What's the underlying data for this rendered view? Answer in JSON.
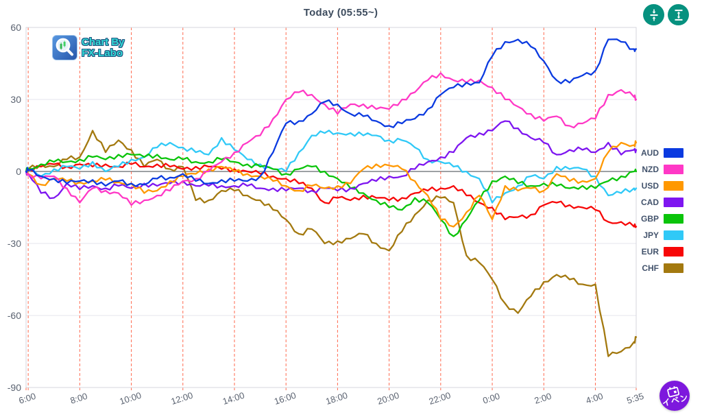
{
  "header": {
    "title": "Today  (05:55~)"
  },
  "toolbar": {
    "shrink_button": {
      "icon": "arrows-collapse-vertical-icon"
    },
    "expand_button": {
      "icon": "arrows-expand-vertical-icon"
    },
    "color": "#06917f"
  },
  "watermark": {
    "line1": "Chart By",
    "line2": "FX-Labo"
  },
  "event_button": {
    "label": "イベン",
    "color": "#7d18dd",
    "icon": "calendar-icon"
  },
  "chart_data": {
    "type": "line",
    "title": "Today (05:55~)",
    "x_unit": "minutes since 05:55",
    "xlim": [
      0,
      1420
    ],
    "ylim": [
      -90,
      60
    ],
    "yticks": [
      60,
      30,
      0,
      -30,
      -60,
      -90
    ],
    "xticks": [
      {
        "min": 5,
        "label": "6:00"
      },
      {
        "min": 125,
        "label": "8:00"
      },
      {
        "min": 245,
        "label": "10:00"
      },
      {
        "min": 365,
        "label": "12:00"
      },
      {
        "min": 485,
        "label": "14:00"
      },
      {
        "min": 605,
        "label": "16:00"
      },
      {
        "min": 725,
        "label": "18:00"
      },
      {
        "min": 845,
        "label": "20:00"
      },
      {
        "min": 965,
        "label": "22:00"
      },
      {
        "min": 1085,
        "label": "0:00"
      },
      {
        "min": 1205,
        "label": "2:00"
      },
      {
        "min": 1325,
        "label": "4:00"
      },
      {
        "min": 1420,
        "label": "5:35"
      }
    ],
    "vline_minutes": [
      0,
      5,
      125,
      245,
      365,
      485,
      605,
      725,
      845,
      965,
      1085,
      1205,
      1325,
      1420
    ],
    "grid": {
      "h_color": "#e6e6ec",
      "zero_color": "#8f9296",
      "v_color": "#ff5030",
      "v_dash": "4 3",
      "border_color": "#d4d4dc",
      "tick_text_color": "#5a6270"
    },
    "x": [
      0,
      5,
      35,
      65,
      95,
      125,
      155,
      185,
      215,
      245,
      275,
      305,
      335,
      365,
      395,
      425,
      455,
      485,
      515,
      545,
      575,
      605,
      635,
      665,
      695,
      725,
      755,
      785,
      815,
      845,
      875,
      905,
      935,
      965,
      995,
      1025,
      1055,
      1085,
      1115,
      1145,
      1175,
      1205,
      1235,
      1265,
      1295,
      1325,
      1355,
      1385,
      1415,
      1420
    ],
    "series": [
      {
        "name": "AUD",
        "color": "#0a3ae0",
        "values": [
          0,
          0.5,
          -2,
          -3,
          -5,
          -4,
          -3.5,
          -6,
          -4,
          -5,
          -5.5,
          -3,
          -2.5,
          -1,
          -4,
          -5,
          -3.5,
          -4,
          -4,
          -2,
          8,
          20,
          21,
          24,
          29,
          28,
          24,
          23,
          21,
          19,
          20,
          22,
          26,
          32,
          35,
          37,
          37,
          48,
          54,
          55,
          52,
          46,
          38,
          37,
          40,
          42,
          55,
          54,
          51,
          51
        ]
      },
      {
        "name": "NZD",
        "color": "#ff38c6",
        "values": [
          0,
          -1,
          -3,
          -2,
          -7,
          -13,
          -7,
          -8,
          -9,
          -14,
          -12,
          -10,
          -8,
          -4,
          -3,
          0,
          4,
          8,
          12,
          15,
          22,
          30,
          33,
          32,
          28,
          24,
          28,
          28,
          26,
          26,
          30,
          33,
          38,
          41,
          38,
          37,
          38,
          35,
          30,
          27,
          24,
          21,
          23,
          19,
          20,
          22,
          32,
          34,
          31,
          30
        ]
      },
      {
        "name": "USD",
        "color": "#ff9800",
        "values": [
          0,
          -1,
          -5.5,
          -3,
          -4,
          -4.5,
          -4,
          -3.5,
          -4.5,
          -5,
          -9,
          -8,
          -4,
          -2,
          -1,
          1,
          2,
          0,
          -1,
          -2,
          -4,
          -6,
          -8,
          -6,
          -7,
          -6,
          -5,
          1,
          3,
          2.5,
          1,
          -4,
          -10,
          -20,
          -23,
          -17,
          -10,
          -20,
          -6,
          -8,
          -7,
          -8,
          -1,
          -4,
          -4,
          -3,
          8,
          12,
          11,
          12
        ]
      },
      {
        "name": "CAD",
        "color": "#7e16f0",
        "values": [
          0,
          -1,
          -9,
          -11,
          -5,
          -7.5,
          -6,
          -7,
          -6,
          -7,
          -5,
          -6,
          -5,
          -4,
          -6,
          -6,
          -6,
          -6,
          -6,
          -7,
          -7,
          -8,
          -7,
          -8,
          -7,
          -8,
          -7,
          -5,
          -4,
          -2,
          -2,
          1,
          4,
          6,
          8,
          14,
          16,
          17,
          21,
          18,
          14,
          12,
          7,
          9,
          9,
          8,
          12,
          7,
          9,
          9
        ]
      },
      {
        "name": "GBP",
        "color": "#0ac40a",
        "values": [
          0,
          1,
          3,
          4,
          4,
          5,
          6,
          5,
          7,
          7,
          6,
          7,
          5,
          5,
          4,
          4,
          5,
          4,
          3,
          2,
          1,
          -1,
          1,
          2,
          0,
          -3,
          -7,
          -9,
          -12,
          -15,
          -16,
          -11,
          -13,
          -20,
          -27,
          -20,
          -12,
          -4,
          -2,
          -5,
          -6,
          -5,
          -6,
          -7,
          -6,
          -7,
          -4,
          -2,
          0,
          0
        ]
      },
      {
        "name": "JPY",
        "color": "#30c9f7",
        "values": [
          0,
          1,
          -2,
          1,
          2,
          1,
          4,
          0,
          2,
          5,
          6,
          10,
          12,
          10,
          8,
          7,
          14,
          9,
          5,
          3,
          1,
          0,
          8,
          15,
          16,
          16,
          16,
          15,
          15,
          13,
          13,
          10,
          5,
          4,
          2,
          0,
          -3,
          -13,
          -9,
          -6,
          -2,
          -3,
          2,
          1,
          1,
          -2,
          -10,
          -9,
          -7,
          -7
        ]
      },
      {
        "name": "EUR",
        "color": "#f70707",
        "values": [
          0,
          1,
          2,
          3,
          2,
          3,
          2,
          3,
          2,
          3,
          2,
          3,
          2,
          1,
          2,
          2,
          1,
          1,
          0,
          -1,
          -2,
          -3,
          -5,
          -7,
          -13,
          -11,
          -12,
          -10,
          -11,
          -12,
          -11,
          -9,
          -8,
          -7,
          -6,
          -10,
          -13,
          -15,
          -20,
          -19,
          -18,
          -14,
          -13,
          -14,
          -15,
          -16,
          -21,
          -21,
          -23,
          -23
        ]
      },
      {
        "name": "CHF",
        "color": "#a3790f",
        "values": [
          0,
          1,
          3,
          2,
          5,
          6,
          17,
          8,
          13,
          9,
          2,
          5,
          1,
          2,
          -12,
          -12,
          -8,
          -8,
          -10,
          -12,
          -16,
          -20,
          -26,
          -24,
          -30,
          -29,
          -28,
          -26,
          -30,
          -33,
          -25,
          -18,
          -12,
          -11,
          -13,
          -35,
          -38,
          -45,
          -55,
          -59,
          -52,
          -46,
          -43,
          -45,
          -47,
          -47,
          -77,
          -75,
          -71,
          -69
        ]
      }
    ],
    "legend_position": "right"
  }
}
